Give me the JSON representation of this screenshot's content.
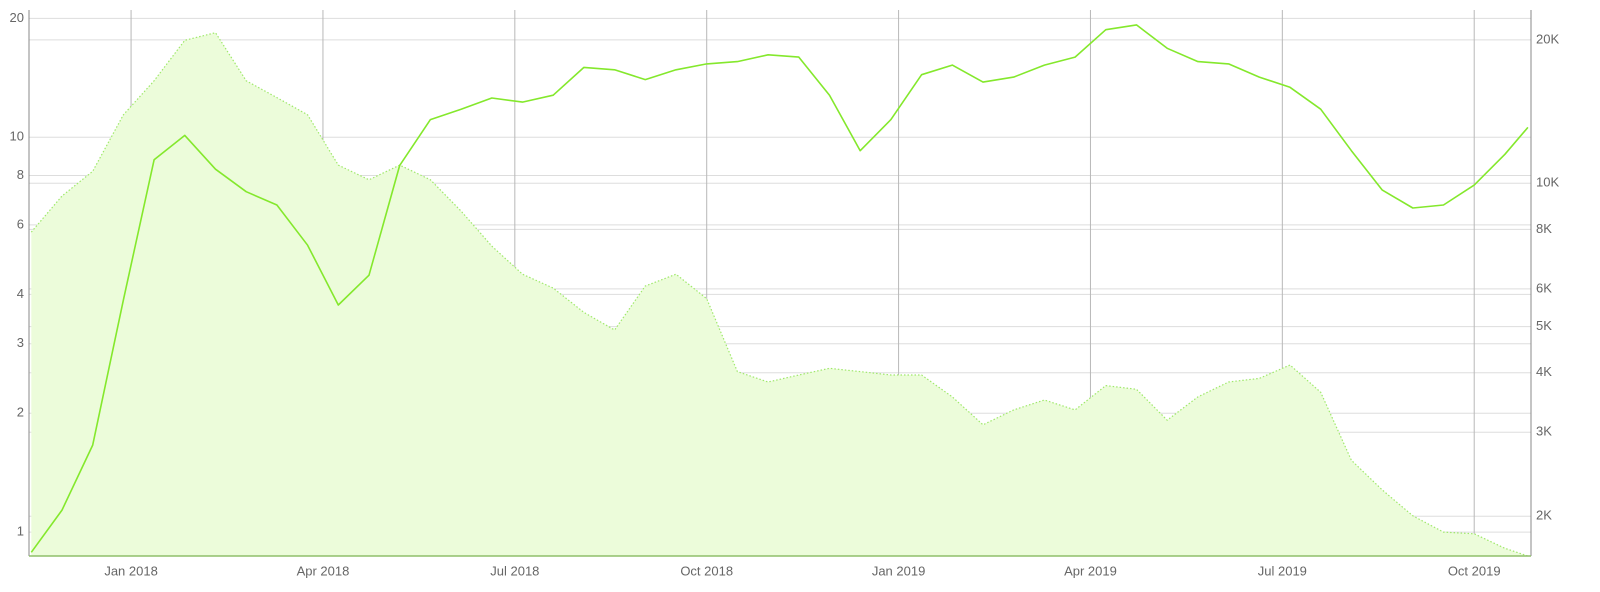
{
  "chart_data": {
    "type": "line",
    "x": [
      2017.87,
      2017.91,
      2017.95,
      2017.99,
      2018.03,
      2018.07,
      2018.11,
      2018.15,
      2018.19,
      2018.23,
      2018.27,
      2018.31,
      2018.35,
      2018.39,
      2018.43,
      2018.47,
      2018.51,
      2018.55,
      2018.59,
      2018.63,
      2018.67,
      2018.71,
      2018.75,
      2018.79,
      2018.83,
      2018.87,
      2018.91,
      2018.95,
      2018.99,
      2019.03,
      2019.07,
      2019.11,
      2019.15,
      2019.19,
      2019.23,
      2019.27,
      2019.31,
      2019.35,
      2019.39,
      2019.43,
      2019.47,
      2019.51,
      2019.55,
      2019.59,
      2019.63,
      2019.67,
      2019.71,
      2019.75,
      2019.79,
      2019.82
    ],
    "series": [
      {
        "kind": "area",
        "color": "#9fe86b",
        "fill": "#ecfcda",
        "values": [
          5.75,
          7.1,
          8.2,
          11.4,
          13.9,
          17.6,
          18.4,
          13.9,
          12.6,
          11.4,
          8.5,
          7.8,
          8.5,
          7.8,
          6.5,
          5.3,
          4.5,
          4.15,
          3.6,
          3.25,
          4.2,
          4.5,
          3.9,
          2.55,
          2.4,
          2.5,
          2.6,
          2.55,
          2.5,
          2.5,
          2.2,
          1.87,
          2.04,
          2.16,
          2.04,
          2.35,
          2.3,
          1.92,
          2.2,
          2.4,
          2.45,
          2.65,
          2.26,
          1.52,
          1.28,
          1.1,
          1.0,
          0.99,
          0.91,
          0.87
        ]
      },
      {
        "kind": "line",
        "axis": "y2",
        "color": "#84e82c",
        "values": [
          1680,
          2060,
          2820,
          5690,
          11200,
          12600,
          10700,
          9600,
          9000,
          7410,
          5550,
          6410,
          10900,
          13600,
          14300,
          15100,
          14800,
          15300,
          17500,
          17300,
          16500,
          17300,
          17800,
          18000,
          18600,
          18400,
          15300,
          11700,
          13600,
          16900,
          17700,
          16300,
          16700,
          17700,
          18400,
          21000,
          21500,
          19200,
          18000,
          17800,
          16700,
          15900,
          14300,
          11700,
          9680,
          8870,
          9000,
          9910,
          11500,
          13100
        ]
      }
    ],
    "xlim": [
      2017.867,
      2019.824
    ],
    "xticks": [
      {
        "value": 2018,
        "label": "Jan 2018"
      },
      {
        "value": 2018.25,
        "label": "Apr 2018"
      },
      {
        "value": 2018.5,
        "label": "Jul 2018"
      },
      {
        "value": 2018.75,
        "label": "Oct 2018"
      },
      {
        "value": 2019,
        "label": "Jan 2019"
      },
      {
        "value": 2019.25,
        "label": "Apr 2019"
      },
      {
        "value": 2019.5,
        "label": "Jul 2019"
      },
      {
        "value": 2019.75,
        "label": "Oct 2019"
      }
    ],
    "ylim": [
      0.87,
      21
    ],
    "ylog": true,
    "yticks": [
      1,
      2,
      3,
      4,
      6,
      8,
      10,
      20
    ],
    "y2lim": [
      1650,
      23100
    ],
    "y2log": true,
    "y2ticks": [
      {
        "value": 2000,
        "label": "2K"
      },
      {
        "value": 3000,
        "label": "3K"
      },
      {
        "value": 4000,
        "label": "4K"
      },
      {
        "value": 5000,
        "label": "5K"
      },
      {
        "value": 6000,
        "label": "6K"
      },
      {
        "value": 8000,
        "label": "8K"
      },
      {
        "value": 10000,
        "label": "10K"
      },
      {
        "value": 20000,
        "label": "20K"
      }
    ],
    "grid": true
  }
}
